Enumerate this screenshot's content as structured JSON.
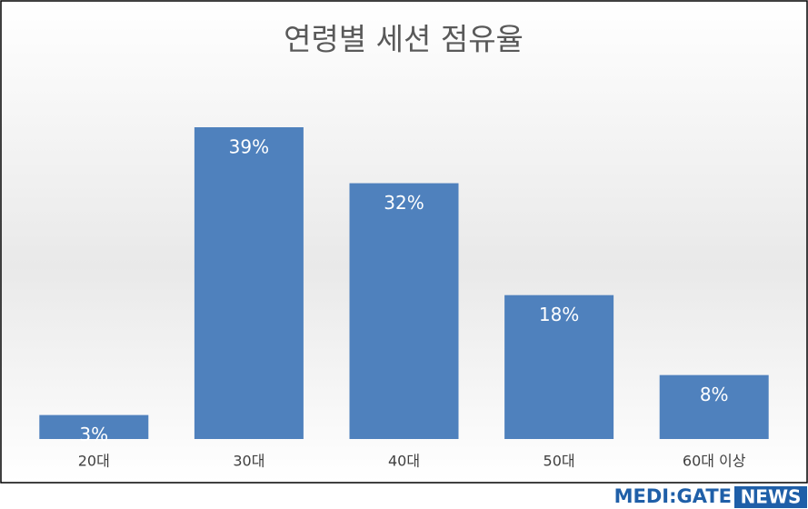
{
  "chart_data": {
    "type": "bar",
    "title": "연령별 세션 점유율",
    "categories": [
      "20대",
      "30대",
      "40대",
      "50대",
      "60대 이상"
    ],
    "values": [
      3,
      39,
      32,
      18,
      8
    ],
    "value_labels": [
      "3%",
      "39%",
      "32%",
      "18%",
      "8%"
    ],
    "color": "#4f81bd"
  },
  "logo": {
    "text": "MEDI:GATE",
    "badge": "NEWS"
  }
}
